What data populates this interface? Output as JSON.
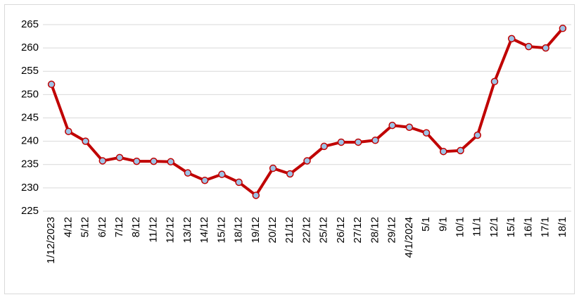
{
  "chart_data": {
    "type": "line",
    "categories": [
      "1/12/2023",
      "4/12",
      "5/12",
      "6/12",
      "7/12",
      "8/12",
      "11/12",
      "12/12",
      "13/12",
      "14/12",
      "15/12",
      "18/12",
      "19/12",
      "20/12",
      "21/12",
      "22/12",
      "25/12",
      "26/12",
      "27/12",
      "28/12",
      "29/12",
      "4/1/2024",
      "5/1",
      "9/1",
      "10/1",
      "11/1",
      "12/1",
      "15/1",
      "16/1",
      "17/1",
      "18/1"
    ],
    "series": [
      {
        "color": "#c00000",
        "values": [
          252.2,
          242.1,
          240,
          235.8,
          236.5,
          235.7,
          235.7,
          235.6,
          233.2,
          231.6,
          232.9,
          231.2,
          228.4,
          234.2,
          233,
          235.8,
          238.9,
          239.8,
          239.8,
          240.2,
          243.4,
          243,
          241.8,
          237.8,
          238,
          241.3,
          252.8,
          262,
          260.3,
          260,
          264.2
        ]
      }
    ],
    "ylim": [
      225,
      265
    ],
    "yticks": [
      225,
      230,
      235,
      240,
      245,
      250,
      255,
      260,
      265
    ],
    "grid": true
  }
}
